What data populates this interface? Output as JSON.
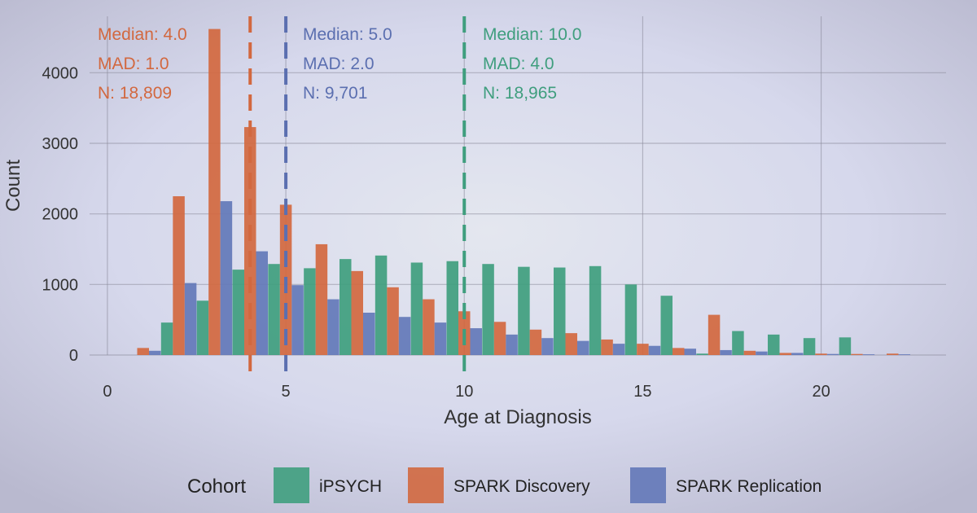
{
  "chart_data": {
    "type": "bar",
    "title": "",
    "xlabel": "Age at Diagnosis",
    "ylabel": "Count",
    "xlim": [
      -0.5,
      23.5
    ],
    "ylim": [
      0,
      4800
    ],
    "x_ticks": [
      0,
      5,
      10,
      15,
      20
    ],
    "y_ticks": [
      0,
      1000,
      2000,
      3000,
      4000
    ],
    "y_tick_labels": [
      "0",
      "1000",
      "2000",
      "3000",
      "4000"
    ],
    "grid": true,
    "legend_position": "bottom",
    "legend_title": "Cohort",
    "series": [
      {
        "name": "iPSYCH",
        "color": "#3f9e7e",
        "x": [
          2,
          3,
          4,
          5,
          6,
          7,
          8,
          9,
          10,
          11,
          12,
          13,
          14,
          15,
          16,
          17,
          18,
          19,
          20,
          21
        ],
        "values": [
          460,
          770,
          1210,
          1290,
          1230,
          1360,
          1410,
          1310,
          1330,
          1290,
          1250,
          1240,
          1260,
          1000,
          840,
          20,
          340,
          290,
          240,
          250
        ]
      },
      {
        "name": "SPARK Discovery",
        "color": "#d2683f",
        "x": [
          1,
          2,
          3,
          4,
          5,
          6,
          7,
          8,
          9,
          10,
          11,
          12,
          13,
          14,
          15,
          16,
          17,
          18,
          19,
          20,
          21,
          22
        ],
        "values": [
          100,
          2250,
          4620,
          3230,
          2130,
          1570,
          1190,
          960,
          790,
          620,
          470,
          360,
          310,
          220,
          160,
          100,
          570,
          60,
          30,
          20,
          15,
          20
        ]
      },
      {
        "name": "SPARK Replication",
        "color": "#6378b8",
        "x": [
          1,
          2,
          3,
          4,
          5,
          6,
          7,
          8,
          9,
          10,
          11,
          12,
          13,
          14,
          15,
          16,
          17,
          18,
          19,
          20,
          21,
          22
        ],
        "values": [
          60,
          1020,
          2180,
          1470,
          990,
          790,
          600,
          540,
          460,
          380,
          290,
          240,
          200,
          160,
          130,
          90,
          70,
          50,
          30,
          15,
          10,
          10
        ]
      }
    ],
    "median_lines": [
      {
        "x": 4.0,
        "color": "#d2683f"
      },
      {
        "x": 5.0,
        "color": "#5b6fb0"
      },
      {
        "x": 10.0,
        "color": "#3f9e7e"
      }
    ],
    "annotations": [
      {
        "median": "Median: 4.0",
        "mad": "MAD: 1.0",
        "n": "N: 18,809",
        "color": "#d2683f"
      },
      {
        "median": "Median: 5.0",
        "mad": "MAD: 2.0",
        "n": "N: 9,701",
        "color": "#5b6fb0"
      },
      {
        "median": "Median: 10.0",
        "mad": "MAD: 4.0",
        "n": "N: 18,965",
        "color": "#3f9e7e"
      }
    ]
  }
}
